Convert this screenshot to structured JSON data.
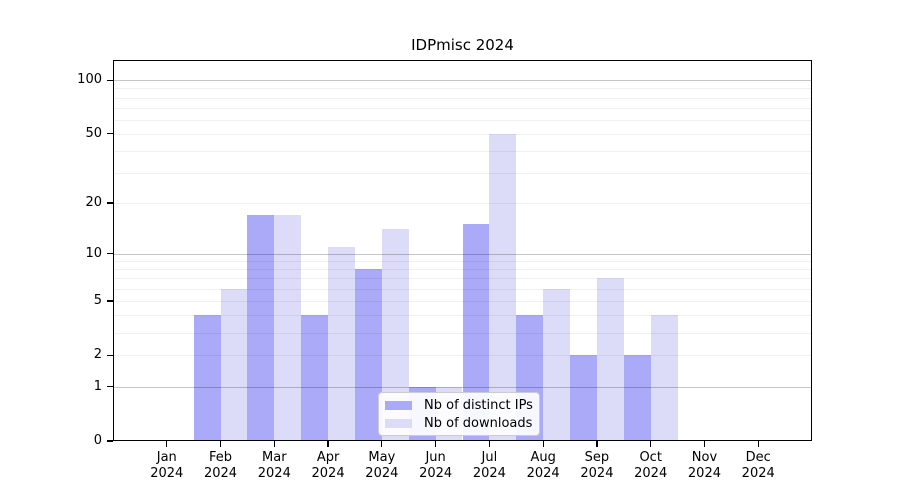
{
  "title": "IDPmisc 2024",
  "chart_data": {
    "type": "bar",
    "title": "IDPmisc 2024",
    "categories": [
      "Jan 2024",
      "Feb 2024",
      "Mar 2024",
      "Apr 2024",
      "May 2024",
      "Jun 2024",
      "Jul 2024",
      "Aug 2024",
      "Sep 2024",
      "Oct 2024",
      "Nov 2024",
      "Dec 2024"
    ],
    "series": [
      {
        "name": "Nb of distinct IPs",
        "color": "#aaaaf8",
        "values": [
          0,
          4,
          17,
          4,
          8,
          1,
          15,
          4,
          2,
          2,
          0,
          0
        ]
      },
      {
        "name": "Nb of downloads",
        "color": "#dcdcf8",
        "values": [
          0,
          6,
          17,
          11,
          14,
          1,
          50,
          6,
          7,
          4,
          0,
          0
        ]
      }
    ],
    "xlabel": "",
    "ylabel": "",
    "yscale": "log1p",
    "ylim": [
      0,
      130
    ],
    "yticks": [
      0,
      1,
      2,
      5,
      10,
      20,
      50,
      100
    ],
    "grid_major": [
      1,
      10,
      100
    ],
    "grid_minor": [
      2,
      3,
      4,
      5,
      6,
      7,
      8,
      9,
      20,
      30,
      40,
      50,
      60,
      70,
      80,
      90
    ],
    "grid": true,
    "legend_position": "lower center"
  },
  "colors": {
    "background": "#ffffff",
    "axis": "#000000",
    "grid_major": "#c9c9c9",
    "grid_minor": "#efefef",
    "legend_border": "#cccccc",
    "bar_dark": "#aaaaf8",
    "bar_light": "#dcdcf8"
  }
}
